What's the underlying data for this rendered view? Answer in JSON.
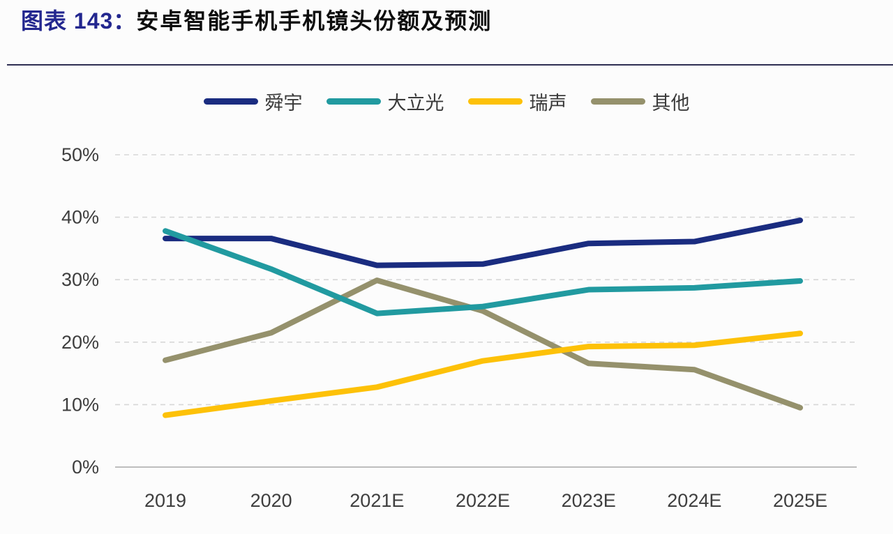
{
  "header": {
    "title_prefix": "图表 143：",
    "title_main": "安卓智能手机手机镜头份额及预测"
  },
  "chart_data": {
    "type": "line",
    "title": "安卓智能手机手机镜头份额及预测",
    "figure_label": "图表 143",
    "categories": [
      "2019",
      "2020",
      "2021E",
      "2022E",
      "2023E",
      "2024E",
      "2025E"
    ],
    "series": [
      {
        "name": "舜宇",
        "color": "#1a2c80",
        "values": [
          36.6,
          36.6,
          32.3,
          32.5,
          35.8,
          36.1,
          39.5
        ]
      },
      {
        "name": "大立光",
        "color": "#219aa0",
        "values": [
          37.8,
          31.7,
          24.6,
          25.7,
          28.4,
          28.7,
          29.8
        ]
      },
      {
        "name": "瑞声",
        "color": "#fdc108",
        "values": [
          8.3,
          10.6,
          12.8,
          17.0,
          19.3,
          19.5,
          21.4
        ]
      },
      {
        "name": "其他",
        "color": "#95916c",
        "values": [
          17.1,
          21.5,
          29.9,
          25.0,
          16.6,
          15.6,
          9.5
        ]
      }
    ],
    "unit": "%",
    "xlabel": "",
    "ylabel": "",
    "y_ticks": [
      "0%",
      "10%",
      "20%",
      "30%",
      "40%",
      "50%"
    ],
    "ylim": [
      0,
      50
    ],
    "grid": "horizontal-dashed",
    "legend_position": "top-center",
    "colors": {
      "title_accent": "#23278f",
      "divider": "#2e2e52",
      "axis_text": "#3e3e3e",
      "gridline": "#d7d7d7",
      "axis_line": "#a8a8a8"
    }
  }
}
